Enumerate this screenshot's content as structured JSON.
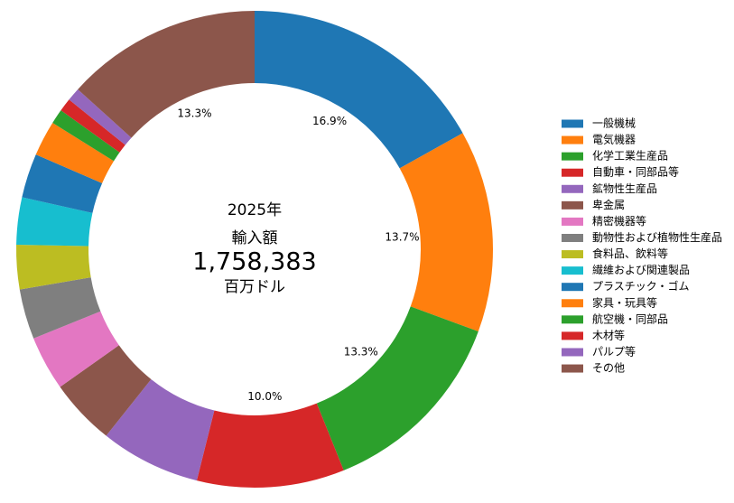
{
  "chart_data": {
    "type": "pie",
    "categories": [
      "一般機械",
      "電気機器",
      "化学工業生産品",
      "自動車・同部品等",
      "鉱物性生産品",
      "卑金属",
      "精密機器等",
      "動物性および植物性生産品",
      "食料品、飲料等",
      "繊維および関連製品",
      "プラスチック・ゴム",
      "家具・玩具等",
      "航空機・同部品",
      "木材等",
      "パルプ等",
      "その他"
    ],
    "values": [
      16.9,
      13.7,
      13.3,
      10.0,
      6.8,
      4.5,
      3.7,
      3.4,
      3.0,
      3.2,
      3.0,
      2.4,
      1.0,
      0.9,
      0.9,
      13.3
    ],
    "value_labels": [
      "16.9%",
      "13.7%",
      "13.3%",
      "10.0%",
      null,
      null,
      null,
      null,
      null,
      null,
      null,
      null,
      null,
      null,
      null,
      "13.3%"
    ],
    "colors": [
      "#1f77b4",
      "#ff7f0e",
      "#2ca02c",
      "#d62728",
      "#9467bd",
      "#8c564b",
      "#e377c2",
      "#7f7f7f",
      "#bcbd22",
      "#17becf",
      "#1f77b4",
      "#ff7f0e",
      "#2ca02c",
      "#d62728",
      "#9467bd",
      "#8c564b"
    ],
    "center_text": [
      "2025年",
      "輸入額",
      "1,758,383",
      "百万ドル"
    ],
    "legend": "right"
  }
}
